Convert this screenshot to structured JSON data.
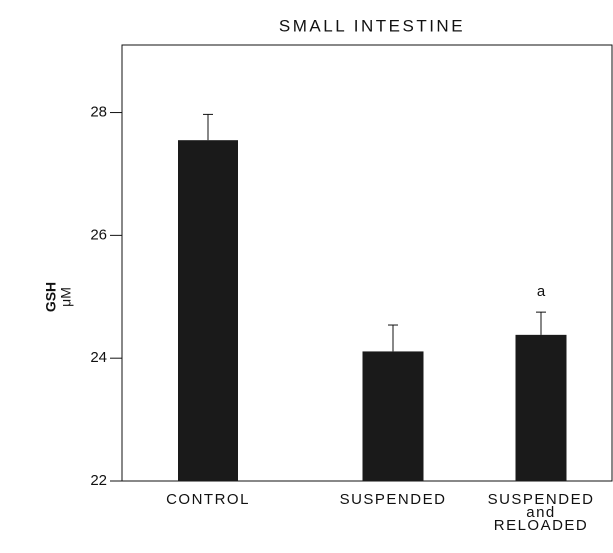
{
  "chart_data": {
    "type": "bar",
    "title": "SMALL INTESTINE",
    "y_label_lines": [
      "GSH",
      "μM"
    ],
    "categories": [
      "CONTROL",
      "SUSPENDED",
      "SUSPENDED\nand\nRELOADED"
    ],
    "values": [
      27.55,
      24.11,
      24.38
    ],
    "errors": [
      0.42,
      0.43,
      0.37
    ],
    "annotations": [
      null,
      null,
      "a"
    ],
    "color": "#1a1a1a",
    "ylim": [
      22,
      29.1
    ],
    "yticks": [
      22,
      24,
      26,
      28
    ],
    "grid": false
  }
}
